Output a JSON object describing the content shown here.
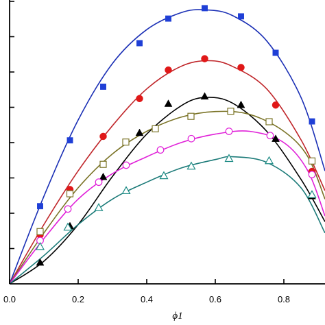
{
  "chart_data": {
    "type": "scatter",
    "xlabel": "ϕ1",
    "xlim": [
      0,
      0.92
    ],
    "ylim": [
      0,
      1
    ],
    "x_ticks": [
      0.0,
      0.2,
      0.4,
      0.6,
      0.8
    ],
    "x_tick_labels": [
      "0.0",
      "0.2",
      "0.4",
      "0.6",
      "0.8"
    ],
    "y_ticks": [
      0.125,
      0.25,
      0.375,
      0.5,
      0.625,
      0.75,
      0.875,
      1.0
    ],
    "y_tick_labels": [],
    "grid": false,
    "legend": "none",
    "series": [
      {
        "marker": "filled-square",
        "color": "#1f3fd6",
        "fit_color": "#1a2fb5",
        "points": [
          [
            0.089,
            0.275
          ],
          [
            0.176,
            0.508
          ],
          [
            0.273,
            0.698
          ],
          [
            0.379,
            0.852
          ],
          [
            0.463,
            0.939
          ],
          [
            0.569,
            0.976
          ],
          [
            0.675,
            0.947
          ],
          [
            0.776,
            0.818
          ],
          [
            0.882,
            0.575
          ]
        ],
        "fit": [
          [
            0,
            0
          ],
          [
            0.1,
            0.31
          ],
          [
            0.2,
            0.58
          ],
          [
            0.3,
            0.78
          ],
          [
            0.4,
            0.9
          ],
          [
            0.5,
            0.96
          ],
          [
            0.57,
            0.97
          ],
          [
            0.65,
            0.95
          ],
          [
            0.75,
            0.86
          ],
          [
            0.85,
            0.66
          ],
          [
            0.92,
            0.4
          ]
        ]
      },
      {
        "marker": "filled-circle",
        "color": "#e01818",
        "fit_color": "#c0262a",
        "points": [
          [
            0.089,
            0.173
          ],
          [
            0.176,
            0.334
          ],
          [
            0.273,
            0.522
          ],
          [
            0.379,
            0.656
          ],
          [
            0.463,
            0.757
          ],
          [
            0.569,
            0.797
          ],
          [
            0.675,
            0.766
          ],
          [
            0.776,
            0.633
          ],
          [
            0.882,
            0.398
          ]
        ],
        "fit": [
          [
            0,
            0
          ],
          [
            0.1,
            0.21
          ],
          [
            0.2,
            0.4
          ],
          [
            0.3,
            0.56
          ],
          [
            0.4,
            0.69
          ],
          [
            0.5,
            0.77
          ],
          [
            0.58,
            0.79
          ],
          [
            0.65,
            0.77
          ],
          [
            0.75,
            0.69
          ],
          [
            0.85,
            0.51
          ],
          [
            0.92,
            0.33
          ]
        ]
      },
      {
        "marker": "filled-triangle",
        "color": "#000000",
        "fit_color": "#000000",
        "points": [
          [
            0.089,
            0.076
          ],
          [
            0.176,
            0.205
          ],
          [
            0.273,
            0.379
          ],
          [
            0.379,
            0.535
          ],
          [
            0.463,
            0.638
          ],
          [
            0.569,
            0.664
          ],
          [
            0.675,
            0.634
          ],
          [
            0.776,
            0.514
          ],
          [
            0.882,
            0.311
          ]
        ],
        "fit": [
          [
            0,
            0
          ],
          [
            0.1,
            0.08
          ],
          [
            0.2,
            0.21
          ],
          [
            0.3,
            0.38
          ],
          [
            0.4,
            0.53
          ],
          [
            0.5,
            0.63
          ],
          [
            0.57,
            0.66
          ],
          [
            0.65,
            0.64
          ],
          [
            0.75,
            0.54
          ],
          [
            0.85,
            0.37
          ],
          [
            0.92,
            0.22
          ]
        ]
      },
      {
        "marker": "open-square",
        "color": "#7a7326",
        "fit_color": "#7a7326",
        "points": [
          [
            0.089,
            0.185
          ],
          [
            0.176,
            0.319
          ],
          [
            0.273,
            0.423
          ],
          [
            0.339,
            0.502
          ],
          [
            0.425,
            0.549
          ],
          [
            0.529,
            0.593
          ],
          [
            0.645,
            0.611
          ],
          [
            0.757,
            0.574
          ],
          [
            0.882,
            0.435
          ]
        ],
        "fit": [
          [
            0,
            0
          ],
          [
            0.1,
            0.18
          ],
          [
            0.2,
            0.34
          ],
          [
            0.3,
            0.46
          ],
          [
            0.4,
            0.54
          ],
          [
            0.5,
            0.59
          ],
          [
            0.6,
            0.61
          ],
          [
            0.7,
            0.6
          ],
          [
            0.8,
            0.54
          ],
          [
            0.87,
            0.45
          ],
          [
            0.92,
            0.3
          ]
        ]
      },
      {
        "marker": "open-circle",
        "color": "#e020d8",
        "fit_color": "#e020d8",
        "points": [
          [
            0.089,
            0.153
          ],
          [
            0.17,
            0.265
          ],
          [
            0.26,
            0.36
          ],
          [
            0.34,
            0.42
          ],
          [
            0.44,
            0.474
          ],
          [
            0.53,
            0.514
          ],
          [
            0.64,
            0.54
          ],
          [
            0.76,
            0.525
          ],
          [
            0.882,
            0.387
          ]
        ],
        "fit": [
          [
            0,
            0
          ],
          [
            0.1,
            0.16
          ],
          [
            0.2,
            0.3
          ],
          [
            0.3,
            0.39
          ],
          [
            0.4,
            0.45
          ],
          [
            0.5,
            0.5
          ],
          [
            0.6,
            0.53
          ],
          [
            0.7,
            0.54
          ],
          [
            0.8,
            0.5
          ],
          [
            0.87,
            0.4
          ],
          [
            0.92,
            0.24
          ]
        ]
      },
      {
        "marker": "open-triangle",
        "color": "#1b8a84",
        "fit_color": "#1b7a78",
        "points": [
          [
            0.089,
            0.132
          ],
          [
            0.17,
            0.201
          ],
          [
            0.26,
            0.27
          ],
          [
            0.34,
            0.33
          ],
          [
            0.45,
            0.383
          ],
          [
            0.53,
            0.417
          ],
          [
            0.64,
            0.444
          ],
          [
            0.757,
            0.436
          ],
          [
            0.882,
            0.316
          ]
        ],
        "fit": [
          [
            0,
            0
          ],
          [
            0.1,
            0.1
          ],
          [
            0.2,
            0.21
          ],
          [
            0.3,
            0.3
          ],
          [
            0.4,
            0.36
          ],
          [
            0.5,
            0.41
          ],
          [
            0.6,
            0.44
          ],
          [
            0.65,
            0.45
          ],
          [
            0.75,
            0.43
          ],
          [
            0.85,
            0.34
          ],
          [
            0.92,
            0.18
          ]
        ]
      }
    ]
  }
}
